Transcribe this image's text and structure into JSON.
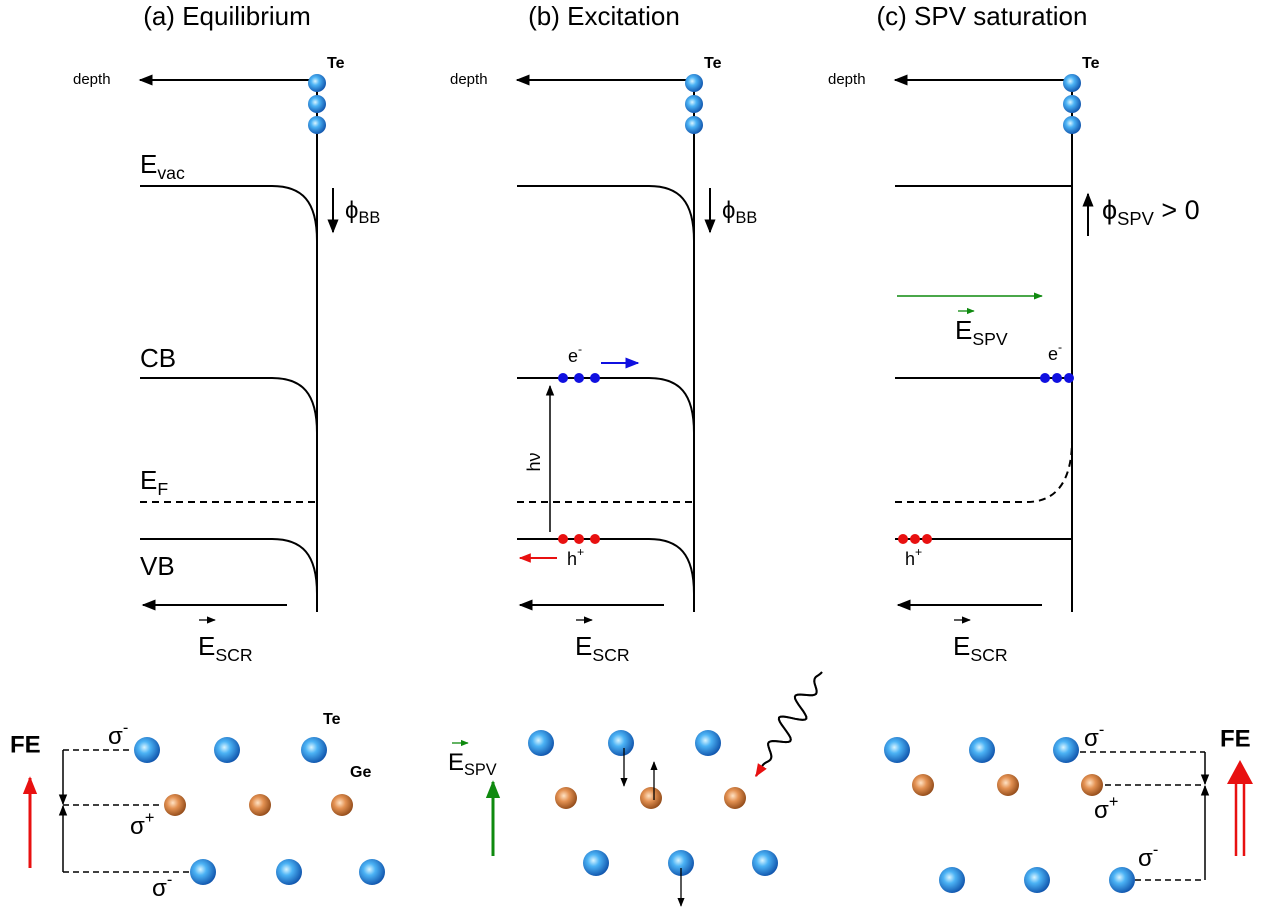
{
  "panels": [
    {
      "title": "(a) Equilibrium",
      "depth": "depth",
      "surface_atom": "Te",
      "vacuum_level": {
        "main": "E",
        "sub": "vac"
      },
      "conduction_band": "CB",
      "fermi_level": {
        "main": "E",
        "sub": "F"
      },
      "valence_band": "VB",
      "potential": {
        "main": "ϕ",
        "sub": "BB"
      },
      "field": {
        "main": "E",
        "sub": "SCR"
      }
    },
    {
      "title": "(b) Excitation",
      "depth": "depth",
      "surface_atom": "Te",
      "potential": {
        "main": "ϕ",
        "sub": "BB"
      },
      "electron": {
        "main": "e",
        "sup": "-"
      },
      "hole": {
        "main": "h",
        "sup": "+"
      },
      "photon": "hν",
      "field": {
        "main": "E",
        "sub": "SCR"
      }
    },
    {
      "title": "(c) SPV saturation",
      "depth": "depth",
      "surface_atom": "Te",
      "potential": {
        "main": "ϕ",
        "sub": "SPV",
        "rest": " > 0"
      },
      "spv_field": {
        "main": "E",
        "sub": "SPV"
      },
      "electron": {
        "main": "e",
        "sup": "-"
      },
      "hole": {
        "main": "h",
        "sup": "+"
      },
      "field": {
        "main": "E",
        "sub": "SCR"
      }
    }
  ],
  "lattice": [
    {
      "polarization": "FE",
      "top_charge": {
        "main": "σ",
        "sup": "-"
      },
      "middle_charge": {
        "main": "σ",
        "sup": "+"
      },
      "bottom_charge": {
        "main": "σ",
        "sup": "-"
      },
      "te_label": "Te",
      "ge_label": "Ge"
    },
    {
      "field": {
        "main": "E",
        "sub": "SPV"
      }
    },
    {
      "polarization": "FE",
      "top_charge": {
        "main": "σ",
        "sup": "-"
      },
      "middle_charge": {
        "main": "σ",
        "sup": "+"
      },
      "bottom_charge": {
        "main": "σ",
        "sup": "-"
      }
    }
  ]
}
